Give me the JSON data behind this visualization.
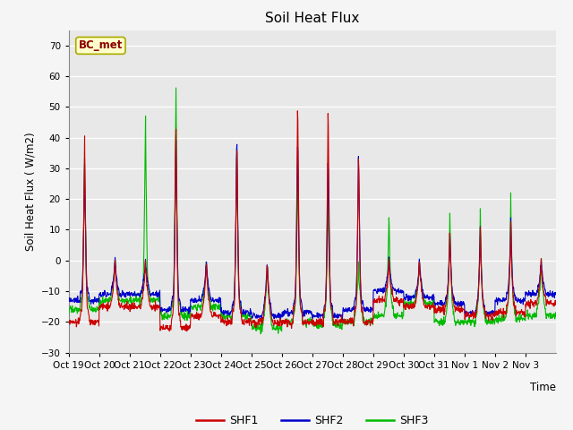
{
  "title": "Soil Heat Flux",
  "ylabel": "Soil Heat Flux ( W/m2)",
  "xlabel": "Time",
  "annotation": "BC_met",
  "ylim": [
    -30,
    75
  ],
  "yticks": [
    -30,
    -20,
    -10,
    0,
    10,
    20,
    30,
    40,
    50,
    60,
    70
  ],
  "colors": {
    "SHF1": "#cc0000",
    "SHF2": "#0000cc",
    "SHF3": "#00bb00"
  },
  "background_color": "#e8e8e8",
  "x_tick_labels": [
    "Oct 19",
    "Oct 20",
    "Oct 21",
    "Oct 22",
    "Oct 23",
    "Oct 24",
    "Oct 25",
    "Oct 26",
    "Oct 27",
    "Oct 28",
    "Oct 29",
    "Oct 30",
    "Oct 31",
    "Nov 1",
    "Nov 2",
    "Nov 3"
  ]
}
